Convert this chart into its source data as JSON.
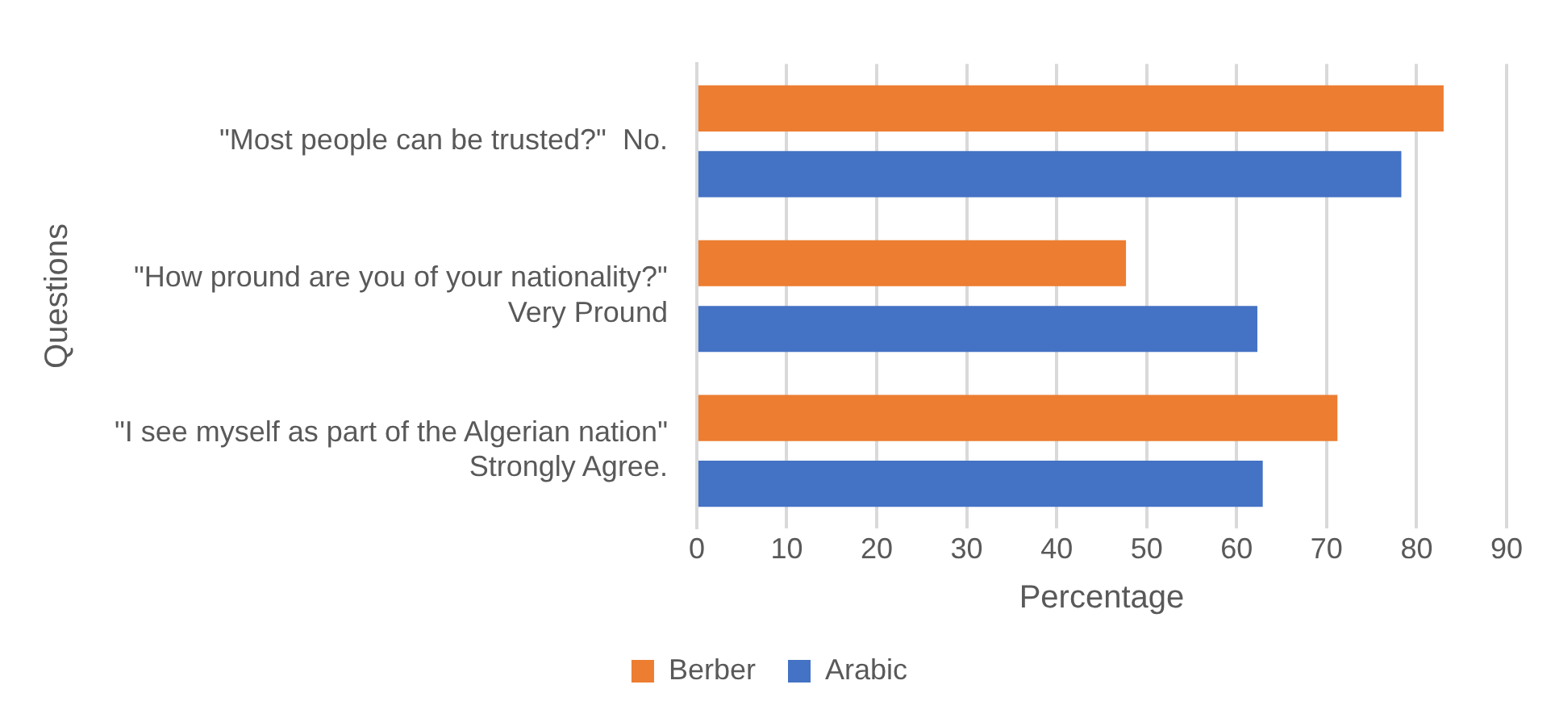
{
  "chart_data": {
    "type": "bar",
    "orientation": "horizontal",
    "xlabel": "Percentage",
    "ylabel": "Questions",
    "categories": [
      "\"Most people can be trusted?\"  No.",
      "\"How pround are you of your nationality?\"\nVery Pround",
      "\"I see myself as part of the Algerian nation\"\nStrongly Agree."
    ],
    "series": [
      {
        "name": "Berber",
        "color": "#ed7d31",
        "values": [
          83,
          47.7,
          71.2
        ]
      },
      {
        "name": "Arabic",
        "color": "#4472c4",
        "values": [
          78.3,
          62.3,
          62.9
        ]
      }
    ],
    "xlim": [
      0,
      90
    ],
    "xticks": [
      0,
      10,
      20,
      30,
      40,
      50,
      60,
      70,
      80,
      90
    ],
    "grid": "x",
    "legend": "bottom"
  }
}
